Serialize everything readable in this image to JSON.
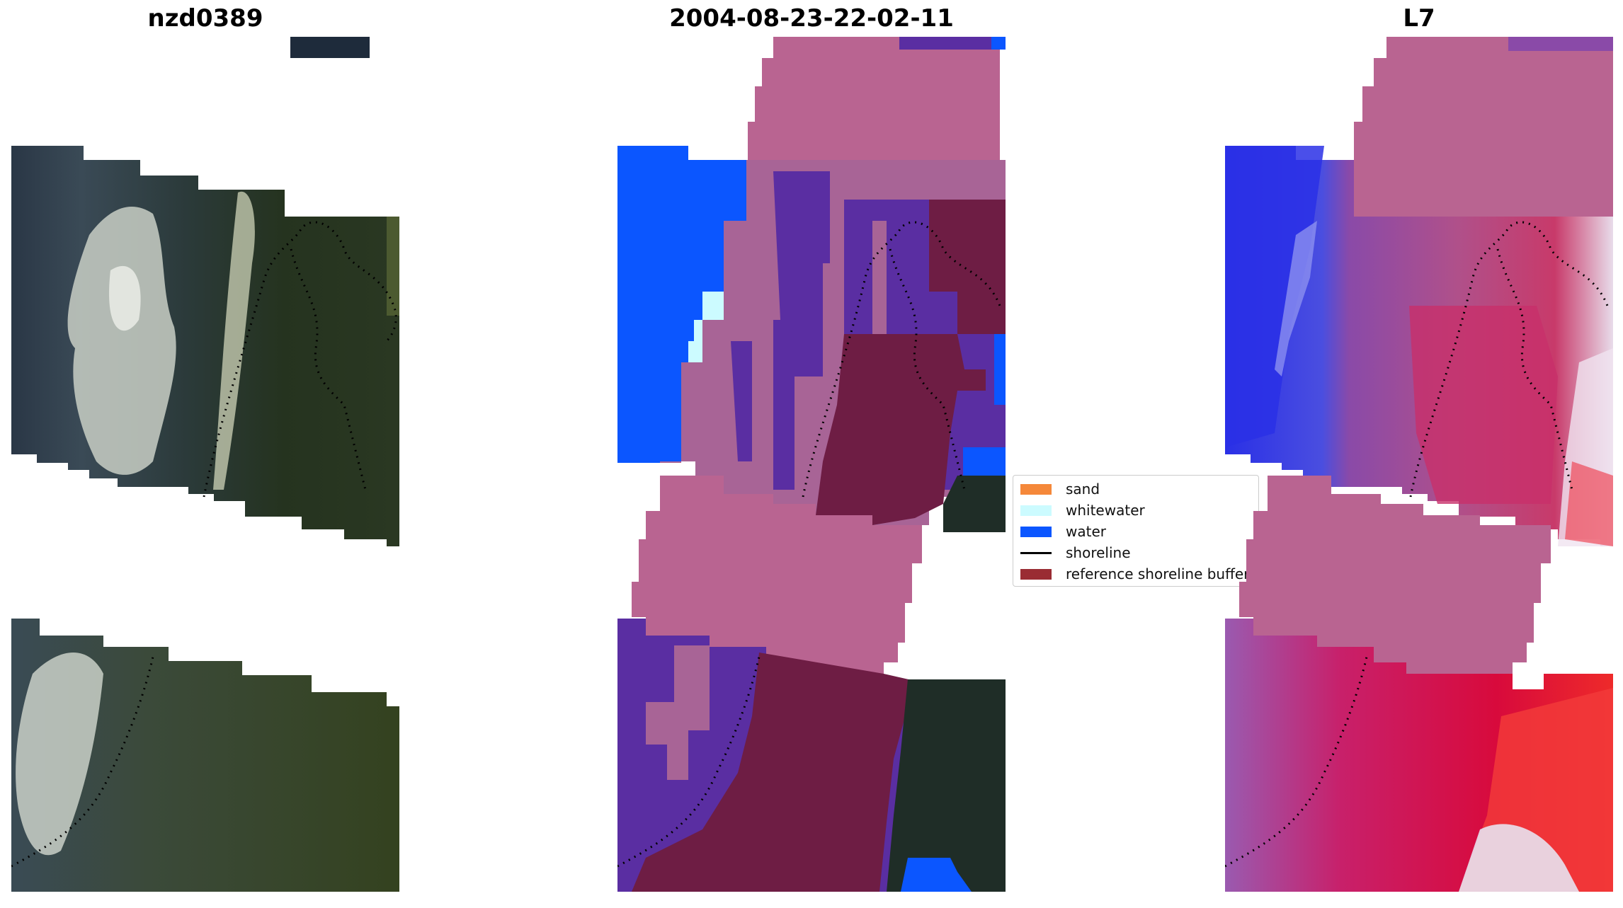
{
  "panels": {
    "left_title": "nzd0389",
    "middle_title": "2004-08-23-22-02-11",
    "right_title": "L7"
  },
  "legend": {
    "items": [
      {
        "label": "sand",
        "kind": "patch",
        "color": "#f5883a"
      },
      {
        "label": "whitewater",
        "kind": "patch",
        "color": "#ccfbff"
      },
      {
        "label": "water",
        "kind": "patch",
        "color": "#0b56ff"
      },
      {
        "label": "shoreline",
        "kind": "line",
        "color": "#000000"
      },
      {
        "label": "reference shoreline buffer",
        "kind": "patch",
        "color": "#9a2c33"
      }
    ]
  },
  "colors": {
    "land_dark": "#2c3a2c",
    "vegetation": "#3d4a2a",
    "cloud": "#d8dcd2",
    "ocean_dark": "#1f2d3d",
    "nodata_pink": "#b96491",
    "classified_purple": "#5a2ea2",
    "classified_mauve": "#a86496",
    "buffer_maroon": "#6e1d44",
    "water_blue": "#0b56ff",
    "whitewater": "#ccfbff",
    "mndwi_blue": "#2a30e6",
    "mndwi_red": "#d8002c"
  }
}
